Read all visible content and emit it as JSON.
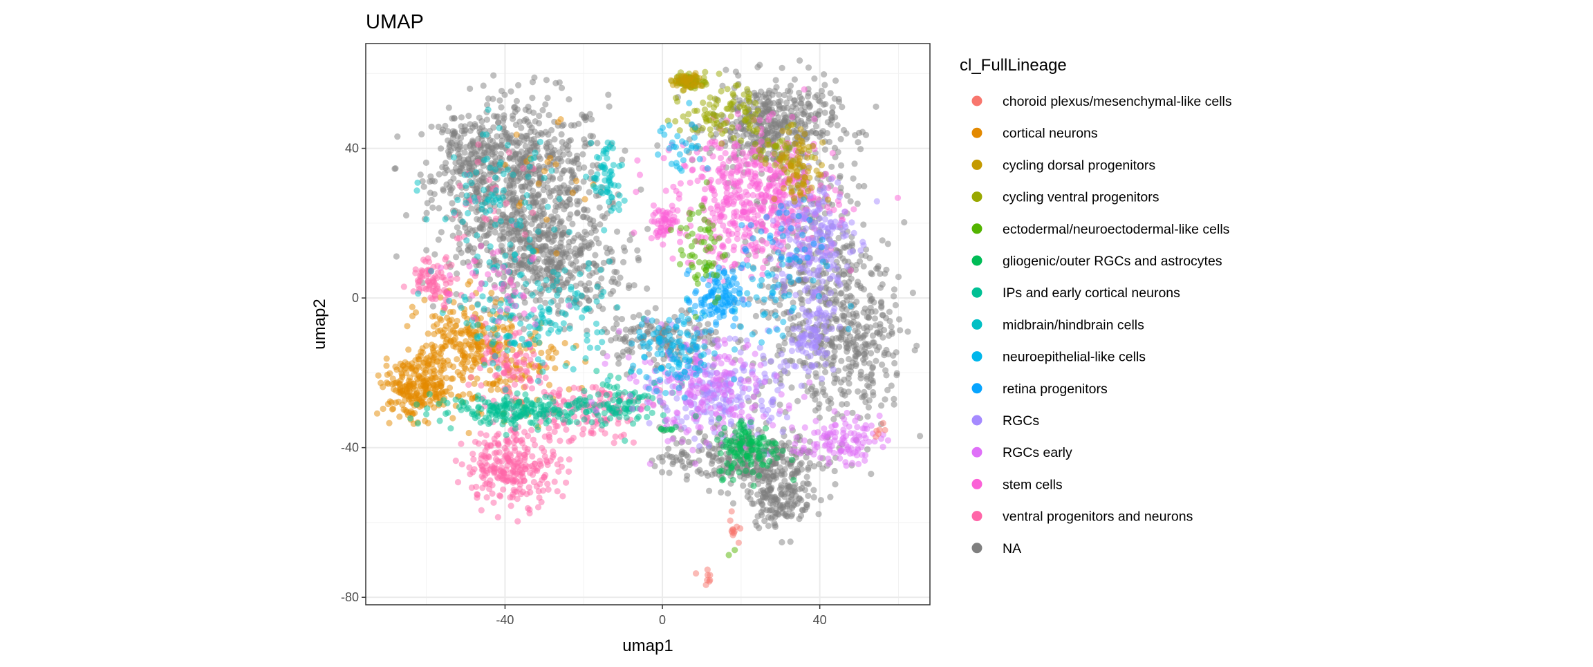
{
  "chart_data": {
    "type": "scatter",
    "title": "UMAP",
    "xlabel": "umap1",
    "ylabel": "umap2",
    "xlim": [
      -75.4,
      68
    ],
    "ylim": [
      -82,
      68
    ],
    "xticks": [
      -40,
      0,
      40
    ],
    "yticks": [
      -80,
      -40,
      0,
      40
    ],
    "xtick_labels": [
      "-40",
      "0",
      "40"
    ],
    "ytick_labels": [
      "-80",
      "-40",
      "0",
      "40"
    ],
    "grid": true,
    "point_alpha": 0.5,
    "legend": {
      "title": "cl_FullLineage",
      "placement": "right",
      "entries": [
        {
          "label": "choroid plexus/mesenchymal-like cells",
          "color": "#F8766D"
        },
        {
          "label": "cortical neurons",
          "color": "#E38900"
        },
        {
          "label": "cycling dorsal progenitors",
          "color": "#C49A00"
        },
        {
          "label": "cycling ventral progenitors",
          "color": "#99A800"
        },
        {
          "label": "ectodermal/neuroectodermal-like cells",
          "color": "#53B400"
        },
        {
          "label": "gliogenic/outer RGCs and astrocytes",
          "color": "#00BC56"
        },
        {
          "label": "IPs and early cortical neurons",
          "color": "#00C094"
        },
        {
          "label": "midbrain/hindbrain cells",
          "color": "#00BFC4"
        },
        {
          "label": "neuroepithelial-like cells",
          "color": "#00B6EB"
        },
        {
          "label": "retina progenitors",
          "color": "#06A4FF"
        },
        {
          "label": "RGCs",
          "color": "#A58AFF"
        },
        {
          "label": "RGCs early",
          "color": "#DF70F8"
        },
        {
          "label": "stem cells",
          "color": "#FB61D7"
        },
        {
          "label": "ventral progenitors and neurons",
          "color": "#FF66A8"
        },
        {
          "label": "NA",
          "color": "#7F7F7F"
        }
      ]
    },
    "clusters_note_units": "approximate point clusters in data units: [category index, center x, center y, sd x, sd y, count]",
    "clusters": [
      [
        14,
        -36,
        32,
        11,
        11,
        700
      ],
      [
        14,
        -30,
        10,
        10,
        7,
        450
      ],
      [
        14,
        28,
        46,
        8,
        6,
        420
      ],
      [
        14,
        40,
        2,
        9,
        18,
        520
      ],
      [
        14,
        20,
        -43,
        10,
        4,
        320
      ],
      [
        14,
        30,
        -53,
        4,
        4,
        160
      ],
      [
        14,
        0,
        -11,
        8,
        4,
        160
      ],
      [
        14,
        50,
        -16,
        6,
        9,
        170
      ],
      [
        14,
        -50,
        38,
        4,
        6,
        120
      ],
      [
        1,
        -62,
        -24,
        5,
        4,
        260
      ],
      [
        1,
        -50,
        -12,
        6,
        6,
        220
      ],
      [
        1,
        -35,
        -20,
        6,
        6,
        90
      ],
      [
        1,
        -30,
        30,
        6,
        8,
        20
      ],
      [
        13,
        -58,
        5,
        3,
        3,
        80
      ],
      [
        13,
        -38,
        -45,
        6,
        5,
        260
      ],
      [
        13,
        -20,
        -30,
        8,
        4,
        130
      ],
      [
        13,
        -40,
        -20,
        5,
        5,
        90
      ],
      [
        13,
        -45,
        25,
        6,
        8,
        30
      ],
      [
        6,
        -36,
        -30,
        11,
        2,
        200
      ],
      [
        6,
        -10,
        -28,
        6,
        3,
        90
      ],
      [
        7,
        -14,
        32,
        2,
        6,
        60
      ],
      [
        7,
        -32,
        -5,
        10,
        7,
        160
      ],
      [
        7,
        -42,
        25,
        8,
        9,
        90
      ],
      [
        12,
        24,
        26,
        10,
        9,
        520
      ],
      [
        12,
        0,
        20,
        2,
        2,
        60
      ],
      [
        12,
        -40,
        5,
        6,
        6,
        40
      ],
      [
        10,
        38,
        15,
        5,
        9,
        200
      ],
      [
        10,
        15,
        -25,
        8,
        6,
        210
      ],
      [
        10,
        38,
        -10,
        3,
        5,
        90
      ],
      [
        11,
        10,
        -25,
        10,
        7,
        210
      ],
      [
        11,
        45,
        -38,
        5,
        3,
        110
      ],
      [
        3,
        7,
        58,
        2,
        1,
        70
      ],
      [
        3,
        15,
        50,
        5,
        4,
        90
      ],
      [
        3,
        30,
        40,
        4,
        3,
        40
      ],
      [
        2,
        35,
        35,
        3,
        5,
        80
      ],
      [
        2,
        6,
        58,
        2,
        1,
        40
      ],
      [
        8,
        3,
        -15,
        5,
        5,
        110
      ],
      [
        8,
        5,
        40,
        3,
        5,
        30
      ],
      [
        8,
        25,
        0,
        8,
        8,
        60
      ],
      [
        9,
        14,
        0,
        3,
        4,
        110
      ],
      [
        9,
        30,
        15,
        6,
        6,
        30
      ],
      [
        4,
        10,
        14,
        3,
        8,
        60
      ],
      [
        4,
        18,
        -67,
        1,
        1,
        2
      ],
      [
        5,
        22,
        -40,
        4,
        4,
        130
      ],
      [
        5,
        1,
        -35,
        1,
        0.5,
        8
      ],
      [
        0,
        18,
        -62,
        0.8,
        2,
        12
      ],
      [
        0,
        12,
        -74,
        1.5,
        1,
        8
      ],
      [
        0,
        55,
        -35,
        1,
        1,
        6
      ]
    ]
  }
}
